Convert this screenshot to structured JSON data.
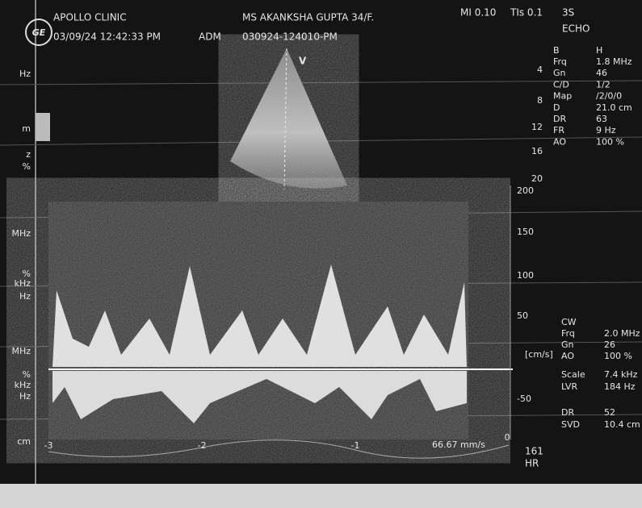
{
  "header": {
    "clinic": "APOLLO CLINIC",
    "datetime": "03/09/24 12:42:33 PM",
    "operator": "ADM",
    "study_id": "030924-124010-PM",
    "patient": "MS AKANKSHA GUPTA 34/F.",
    "mi": "MI 0.10",
    "tis": "TIs 0.1",
    "probe": "3S",
    "preset": "ECHO"
  },
  "image": {
    "label": "V",
    "depth_marks": [
      "4",
      "8",
      "12",
      "16",
      "20"
    ]
  },
  "left_labels": [
    "Hz",
    "m",
    "z",
    "%",
    "MHz",
    "%",
    "kHz",
    "Hz",
    "MHz",
    "%",
    "kHz",
    "Hz",
    "cm"
  ],
  "b_mode": {
    "title": [
      "B",
      "H"
    ],
    "params": [
      [
        "Frq",
        "1.8 MHz"
      ],
      [
        "Gn",
        "46"
      ],
      [
        "C/D",
        "1/2"
      ],
      [
        "Map",
        "/2/0/0"
      ],
      [
        "D",
        "21.0 cm"
      ],
      [
        "DR",
        "63"
      ],
      [
        "FR",
        "9 Hz"
      ],
      [
        "AO",
        "100 %"
      ]
    ]
  },
  "doppler": {
    "scale": [
      "200",
      "150",
      "100",
      "50",
      "-50"
    ],
    "unit": "[cm/s]",
    "time_axis": [
      "-3",
      "-2",
      "-1",
      "0"
    ],
    "sweep": "66.67 mm/s",
    "hr_value": "161",
    "hr_label": "HR"
  },
  "cw": {
    "title": "CW",
    "params": [
      [
        "Frq",
        "2.0 MHz"
      ],
      [
        "Gn",
        "26"
      ],
      [
        "AO",
        "100 %"
      ],
      [
        "Scale",
        "7.4 kHz"
      ],
      [
        "LVR",
        "184 Hz"
      ],
      [
        "DR",
        "52"
      ],
      [
        "SVD",
        "10.4 cm"
      ]
    ]
  }
}
